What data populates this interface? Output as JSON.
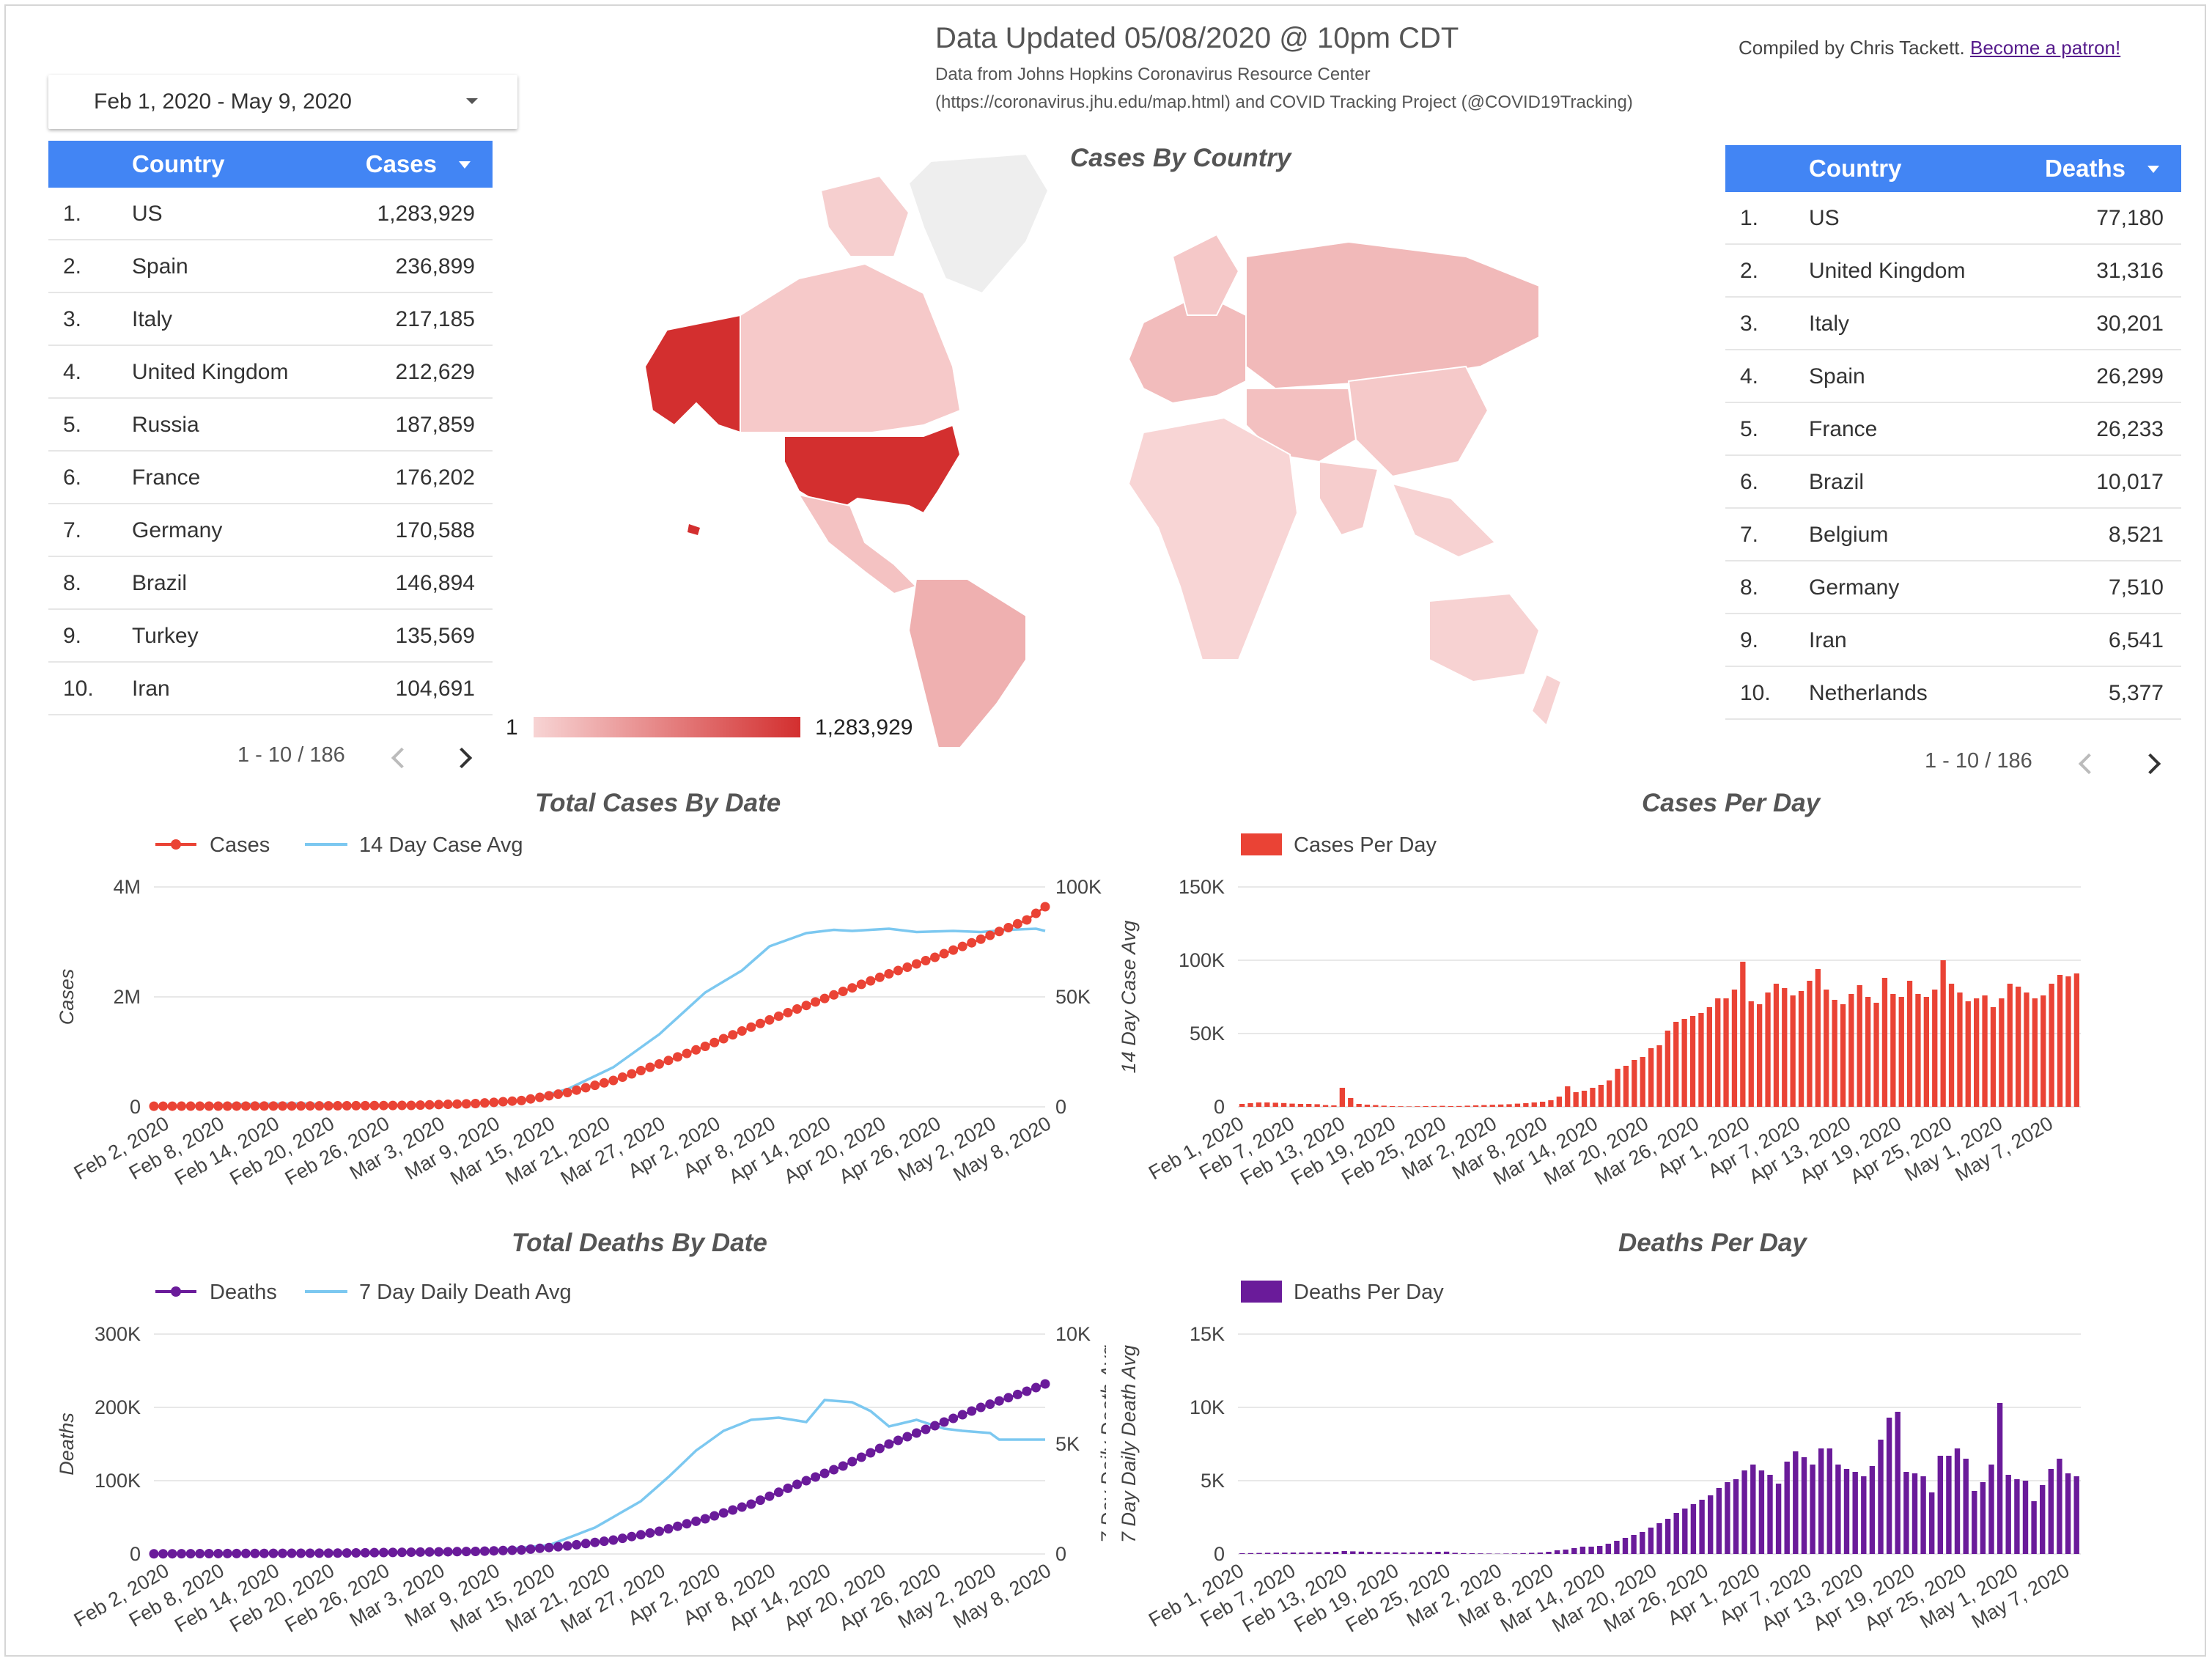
{
  "header": {
    "title": "Data Updated 05/08/2020 @ 10pm CDT",
    "source_line1": "Data from Johns Hopkins Coronavirus Resource Center",
    "source_line2": "(https://coronavirus.jhu.edu/map.html) and COVID Tracking Project (@COVID19Tracking)",
    "credit": "Compiled by Chris Tackett.",
    "credit_link": "Become a patron!"
  },
  "date_range": {
    "value": "Feb 1, 2020 - May 9, 2020"
  },
  "cases_table": {
    "col_country": "Country",
    "col_value": "Cases",
    "rows": [
      {
        "idx": "1.",
        "country": "US",
        "value": "1,283,929"
      },
      {
        "idx": "2.",
        "country": "Spain",
        "value": "236,899"
      },
      {
        "idx": "3.",
        "country": "Italy",
        "value": "217,185"
      },
      {
        "idx": "4.",
        "country": "United Kingdom",
        "value": "212,629"
      },
      {
        "idx": "5.",
        "country": "Russia",
        "value": "187,859"
      },
      {
        "idx": "6.",
        "country": "France",
        "value": "176,202"
      },
      {
        "idx": "7.",
        "country": "Germany",
        "value": "170,588"
      },
      {
        "idx": "8.",
        "country": "Brazil",
        "value": "146,894"
      },
      {
        "idx": "9.",
        "country": "Turkey",
        "value": "135,569"
      },
      {
        "idx": "10.",
        "country": "Iran",
        "value": "104,691"
      }
    ],
    "pager": "1 - 10 / 186"
  },
  "deaths_table": {
    "col_country": "Country",
    "col_value": "Deaths",
    "rows": [
      {
        "idx": "1.",
        "country": "US",
        "value": "77,180"
      },
      {
        "idx": "2.",
        "country": "United Kingdom",
        "value": "31,316"
      },
      {
        "idx": "3.",
        "country": "Italy",
        "value": "30,201"
      },
      {
        "idx": "4.",
        "country": "Spain",
        "value": "26,299"
      },
      {
        "idx": "5.",
        "country": "France",
        "value": "26,233"
      },
      {
        "idx": "6.",
        "country": "Brazil",
        "value": "10,017"
      },
      {
        "idx": "7.",
        "country": "Belgium",
        "value": "8,521"
      },
      {
        "idx": "8.",
        "country": "Germany",
        "value": "7,510"
      },
      {
        "idx": "9.",
        "country": "Iran",
        "value": "6,541"
      },
      {
        "idx": "10.",
        "country": "Netherlands",
        "value": "5,377"
      }
    ],
    "pager": "1 - 10 / 186"
  },
  "map": {
    "title": "Cases By Country",
    "scale_min": "1",
    "scale_max": "1,283,929",
    "colors": {
      "low": "#f7d4d4",
      "high": "#d32f2f",
      "no_data": "#eeeeee"
    }
  },
  "colors": {
    "cases": "#ea4335",
    "avg": "#7cc8f0",
    "deaths": "#6a1b9a",
    "grid": "#e8e8e8",
    "header_blue": "#4285f4"
  },
  "chart_data": [
    {
      "type": "line",
      "title": "Total Cases By Date",
      "series_names": [
        "Cases",
        "14 Day Case Avg"
      ],
      "ylabel": "Cases",
      "ylabel_right": "",
      "y_ticks": [
        "0",
        "2M",
        "4M"
      ],
      "y2_ticks": [
        "0",
        "50K",
        "100K"
      ],
      "ylim": [
        0,
        4000000
      ],
      "y2lim": [
        0,
        100000
      ],
      "x_ticks": [
        "Feb 2, 2020",
        "Feb 8, 2020",
        "Feb 14, 2020",
        "Feb 20, 2020",
        "Feb 26, 2020",
        "Mar 3, 2020",
        "Mar 9, 2020",
        "Mar 15, 2020",
        "Mar 21, 2020",
        "Mar 27, 2020",
        "Apr 2, 2020",
        "Apr 8, 2020",
        "Apr 14, 2020",
        "Apr 20, 2020",
        "Apr 26, 2020",
        "May 2, 2020",
        "May 8, 2020"
      ],
      "x_start": "Feb 1, 2020",
      "x_end": "May 8, 2020",
      "primary_keys": [
        [
          0,
          12000
        ],
        [
          14,
          15000
        ],
        [
          21,
          20000
        ],
        [
          28,
          27000
        ],
        [
          35,
          60000
        ],
        [
          40,
          115000
        ],
        [
          45,
          260000
        ],
        [
          50,
          480000
        ],
        [
          55,
          780000
        ],
        [
          60,
          1100000
        ],
        [
          65,
          1450000
        ],
        [
          70,
          1780000
        ],
        [
          75,
          2100000
        ],
        [
          80,
          2420000
        ],
        [
          85,
          2720000
        ],
        [
          90,
          3050000
        ],
        [
          95,
          3400000
        ],
        [
          97,
          3640000
        ]
      ],
      "secondary_keys": [
        [
          0,
          0
        ],
        [
          10,
          1200
        ],
        [
          16,
          1500
        ],
        [
          21,
          800
        ],
        [
          30,
          800
        ],
        [
          40,
          2500
        ],
        [
          45,
          8000
        ],
        [
          50,
          18000
        ],
        [
          55,
          33000
        ],
        [
          60,
          52000
        ],
        [
          64,
          62000
        ],
        [
          67,
          73000
        ],
        [
          71,
          79000
        ],
        [
          74,
          80500
        ],
        [
          76,
          80000
        ],
        [
          80,
          81000
        ],
        [
          83,
          79500
        ],
        [
          87,
          80000
        ],
        [
          90,
          79500
        ],
        [
          93,
          80500
        ],
        [
          96,
          81000
        ],
        [
          97,
          80000
        ]
      ]
    },
    {
      "type": "bar",
      "title": "Cases Per Day",
      "series_names": [
        "Cases Per Day"
      ],
      "ylabel": "14 Day Case Avg",
      "y_ticks": [
        "0",
        "50K",
        "100K",
        "150K"
      ],
      "ylim": [
        0,
        150000
      ],
      "x_ticks": [
        "Feb 1, 2020",
        "Feb 7, 2020",
        "Feb 13, 2020",
        "Feb 19, 2020",
        "Feb 25, 2020",
        "Mar 2, 2020",
        "Mar 8, 2020",
        "Mar 14, 2020",
        "Mar 20, 2020",
        "Mar 26, 2020",
        "Apr 1, 2020",
        "Apr 7, 2020",
        "Apr 13, 2020",
        "Apr 19, 2020",
        "Apr 25, 2020",
        "May 1, 2020",
        "May 7, 2020"
      ],
      "x_start": "Feb 1, 2020",
      "x_end": "May 8, 2020",
      "values": [
        2000,
        2500,
        3000,
        3000,
        2800,
        2600,
        2200,
        2000,
        2000,
        1800,
        1200,
        1000,
        13000,
        6000,
        2000,
        1500,
        1200,
        800,
        500,
        400,
        300,
        400,
        500,
        600,
        700,
        500,
        600,
        800,
        1000,
        1200,
        1400,
        1600,
        1800,
        2200,
        2500,
        3000,
        3500,
        4500,
        7000,
        14000,
        10000,
        11000,
        13000,
        15000,
        18000,
        26000,
        28000,
        32000,
        34000,
        40000,
        42000,
        52000,
        58000,
        60000,
        62000,
        64000,
        68000,
        74000,
        74000,
        80000,
        99000,
        72000,
        70000,
        78000,
        84000,
        81000,
        76000,
        79000,
        86000,
        94000,
        80000,
        73000,
        70000,
        77000,
        83000,
        75000,
        71000,
        88000,
        77000,
        75000,
        86000,
        77000,
        75000,
        80000,
        100000,
        84000,
        78000,
        72000,
        74000,
        76000,
        68000,
        74000,
        84000,
        82000,
        78000,
        74000,
        76000,
        84000,
        90000,
        89000,
        91000
      ]
    },
    {
      "type": "line",
      "title": "Total Deaths By Date",
      "series_names": [
        "Deaths",
        "7 Day Daily Death Avg"
      ],
      "ylabel": "Deaths",
      "ylabel_right": "7 Day Daily Death Avg",
      "y_ticks": [
        "0",
        "100K",
        "200K",
        "300K"
      ],
      "y2_ticks": [
        "0",
        "5K",
        "10K"
      ],
      "ylim": [
        0,
        300000
      ],
      "y2lim": [
        0,
        10000
      ],
      "x_ticks": [
        "Feb 2, 2020",
        "Feb 8, 2020",
        "Feb 14, 2020",
        "Feb 20, 2020",
        "Feb 26, 2020",
        "Mar 3, 2020",
        "Mar 9, 2020",
        "Mar 15, 2020",
        "Mar 21, 2020",
        "Mar 27, 2020",
        "Apr 2, 2020",
        "Apr 8, 2020",
        "Apr 14, 2020",
        "Apr 20, 2020",
        "Apr 26, 2020",
        "May 2, 2020",
        "May 8, 2020"
      ],
      "x_start": "Feb 1, 2020",
      "x_end": "May 8, 2020",
      "primary_keys": [
        [
          0,
          200
        ],
        [
          20,
          1200
        ],
        [
          35,
          3500
        ],
        [
          40,
          5500
        ],
        [
          45,
          11000
        ],
        [
          50,
          19000
        ],
        [
          55,
          31000
        ],
        [
          60,
          48000
        ],
        [
          65,
          68000
        ],
        [
          70,
          95000
        ],
        [
          75,
          120000
        ],
        [
          80,
          150000
        ],
        [
          85,
          175000
        ],
        [
          90,
          200000
        ],
        [
          95,
          222000
        ],
        [
          97,
          232000
        ]
      ],
      "secondary_keys": [
        [
          0,
          0
        ],
        [
          35,
          80
        ],
        [
          43,
          400
        ],
        [
          48,
          1200
        ],
        [
          53,
          2400
        ],
        [
          56,
          3500
        ],
        [
          59,
          4700
        ],
        [
          62,
          5600
        ],
        [
          65,
          6100
        ],
        [
          68,
          6200
        ],
        [
          71,
          6000
        ],
        [
          73,
          7000
        ],
        [
          76,
          6900
        ],
        [
          78,
          6500
        ],
        [
          80,
          5800
        ],
        [
          83,
          6100
        ],
        [
          86,
          5700
        ],
        [
          88,
          5600
        ],
        [
          91,
          5500
        ],
        [
          92,
          5200
        ],
        [
          95,
          5200
        ],
        [
          97,
          5200
        ]
      ]
    },
    {
      "type": "bar",
      "title": "Deaths Per Day",
      "series_names": [
        "Deaths Per Day"
      ],
      "ylabel": "7 Day Daily Death Avg",
      "y_ticks": [
        "0",
        "5K",
        "10K",
        "15K"
      ],
      "ylim": [
        0,
        15000
      ],
      "x_ticks": [
        "Feb 1, 2020",
        "Feb 7, 2020",
        "Feb 13, 2020",
        "Feb 19, 2020",
        "Feb 25, 2020",
        "Mar 2, 2020",
        "Mar 8, 2020",
        "Mar 14, 2020",
        "Mar 20, 2020",
        "Mar 26, 2020",
        "Apr 1, 2020",
        "Apr 7, 2020",
        "Apr 13, 2020",
        "Apr 19, 2020",
        "Apr 25, 2020",
        "May 1, 2020",
        "May 7, 2020"
      ],
      "x_start": "Feb 1, 2020",
      "x_end": "May 8, 2020",
      "values": [
        50,
        60,
        70,
        80,
        90,
        90,
        100,
        100,
        110,
        120,
        130,
        150,
        200,
        180,
        160,
        140,
        130,
        120,
        110,
        100,
        110,
        120,
        130,
        150,
        160,
        80,
        60,
        50,
        40,
        30,
        20,
        30,
        40,
        60,
        80,
        100,
        150,
        250,
        300,
        400,
        500,
        500,
        550,
        700,
        900,
        1100,
        1300,
        1500,
        1800,
        2100,
        2400,
        2800,
        3100,
        3400,
        3700,
        4000,
        4500,
        4900,
        5100,
        5700,
        6100,
        5700,
        5400,
        4800,
        6300,
        7000,
        6600,
        6100,
        7200,
        7200,
        6100,
        5800,
        5600,
        5300,
        6000,
        7800,
        9300,
        9700,
        5600,
        5500,
        5300,
        4200,
        6700,
        6700,
        7200,
        6500,
        4300,
        4900,
        6100,
        10300,
        5400,
        5100,
        5000,
        3600,
        4700,
        5800,
        6500,
        5500,
        5300
      ]
    }
  ]
}
